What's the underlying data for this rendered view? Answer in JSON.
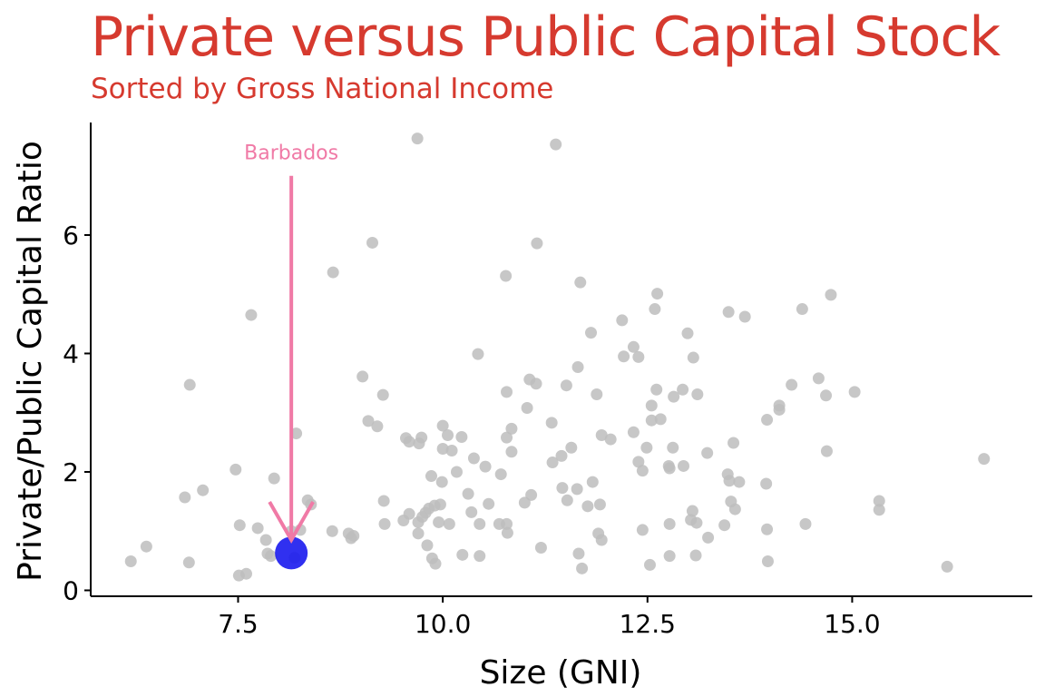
{
  "chart_data": {
    "type": "scatter",
    "title": "Private versus Public Capital Stock",
    "subtitle": "Sorted by Gross National Income",
    "xlabel": "Size (GNI)",
    "ylabel": "Private/Public Capital Ratio",
    "xlim": [
      5.7,
      17.2
    ],
    "ylim": [
      -0.1,
      7.9
    ],
    "x_ticks": [
      7.5,
      10.0,
      12.5,
      15.0
    ],
    "x_tick_labels": [
      "7.5",
      "10.0",
      "12.5",
      "15.0"
    ],
    "y_ticks": [
      0,
      2,
      4,
      6
    ],
    "y_tick_labels": [
      "0",
      "2",
      "4",
      "6"
    ],
    "grid": false,
    "point_color": "#bdbdbd",
    "highlight_color": "#1a1aee",
    "annotation_color": "#f07aa6",
    "points": [
      [
        9.69,
        7.63
      ],
      [
        11.38,
        7.53
      ],
      [
        9.14,
        5.87
      ],
      [
        11.15,
        5.86
      ],
      [
        8.66,
        5.37
      ],
      [
        10.77,
        5.31
      ],
      [
        11.68,
        5.2
      ],
      [
        12.62,
        5.01
      ],
      [
        14.74,
        4.99
      ],
      [
        13.49,
        4.7
      ],
      [
        14.39,
        4.75
      ],
      [
        7.66,
        4.65
      ],
      [
        12.59,
        4.75
      ],
      [
        13.69,
        4.62
      ],
      [
        12.19,
        4.56
      ],
      [
        11.81,
        4.35
      ],
      [
        12.99,
        4.34
      ],
      [
        12.33,
        4.11
      ],
      [
        12.39,
        3.94
      ],
      [
        12.21,
        3.95
      ],
      [
        13.06,
        3.93
      ],
      [
        10.43,
        3.99
      ],
      [
        9.02,
        3.61
      ],
      [
        11.65,
        3.77
      ],
      [
        14.59,
        3.58
      ],
      [
        11.06,
        3.56
      ],
      [
        11.14,
        3.49
      ],
      [
        11.51,
        3.46
      ],
      [
        12.61,
        3.39
      ],
      [
        6.91,
        3.47
      ],
      [
        14.26,
        3.47
      ],
      [
        15.03,
        3.35
      ],
      [
        10.78,
        3.35
      ],
      [
        9.27,
        3.3
      ],
      [
        11.88,
        3.31
      ],
      [
        12.93,
        3.39
      ],
      [
        13.11,
        3.31
      ],
      [
        12.82,
        3.27
      ],
      [
        14.68,
        3.29
      ],
      [
        11.03,
        3.08
      ],
      [
        12.55,
        3.12
      ],
      [
        14.11,
        3.12
      ],
      [
        14.11,
        3.05
      ],
      [
        12.66,
        2.89
      ],
      [
        12.55,
        2.87
      ],
      [
        9.09,
        2.86
      ],
      [
        13.96,
        2.88
      ],
      [
        11.33,
        2.83
      ],
      [
        9.2,
        2.77
      ],
      [
        10.0,
        2.78
      ],
      [
        10.84,
        2.73
      ],
      [
        12.33,
        2.67
      ],
      [
        8.21,
        2.65
      ],
      [
        11.94,
        2.62
      ],
      [
        10.06,
        2.62
      ],
      [
        10.23,
        2.59
      ],
      [
        10.78,
        2.58
      ],
      [
        12.05,
        2.55
      ],
      [
        9.55,
        2.57
      ],
      [
        9.74,
        2.58
      ],
      [
        9.59,
        2.51
      ],
      [
        9.71,
        2.48
      ],
      [
        10.0,
        2.39
      ],
      [
        12.49,
        2.41
      ],
      [
        12.81,
        2.41
      ],
      [
        13.55,
        2.49
      ],
      [
        11.57,
        2.41
      ],
      [
        10.11,
        2.36
      ],
      [
        10.84,
        2.34
      ],
      [
        14.69,
        2.35
      ],
      [
        13.23,
        2.32
      ],
      [
        11.45,
        2.27
      ],
      [
        10.38,
        2.23
      ],
      [
        12.39,
        2.17
      ],
      [
        11.34,
        2.16
      ],
      [
        12.76,
        2.1
      ],
      [
        12.94,
        2.1
      ],
      [
        10.52,
        2.09
      ],
      [
        16.61,
        2.22
      ],
      [
        12.77,
        2.06
      ],
      [
        12.44,
        2.02
      ],
      [
        7.47,
        2.04
      ],
      [
        10.17,
        2.0
      ],
      [
        13.48,
        1.96
      ],
      [
        10.71,
        1.96
      ],
      [
        9.86,
        1.93
      ],
      [
        13.5,
        1.85
      ],
      [
        7.94,
        1.89
      ],
      [
        11.83,
        1.83
      ],
      [
        9.99,
        1.83
      ],
      [
        13.62,
        1.83
      ],
      [
        13.95,
        1.8
      ],
      [
        11.46,
        1.73
      ],
      [
        11.64,
        1.71
      ],
      [
        7.07,
        1.69
      ],
      [
        10.31,
        1.63
      ],
      [
        11.08,
        1.61
      ],
      [
        11.52,
        1.52
      ],
      [
        6.85,
        1.57
      ],
      [
        8.35,
        1.52
      ],
      [
        9.28,
        1.51
      ],
      [
        11.92,
        1.45
      ],
      [
        8.39,
        1.45
      ],
      [
        10.56,
        1.46
      ],
      [
        9.9,
        1.43
      ],
      [
        9.83,
        1.38
      ],
      [
        9.97,
        1.45
      ],
      [
        13.57,
        1.37
      ],
      [
        13.52,
        1.5
      ],
      [
        11.77,
        1.42
      ],
      [
        11.0,
        1.48
      ],
      [
        15.33,
        1.51
      ],
      [
        15.33,
        1.36
      ],
      [
        9.59,
        1.29
      ],
      [
        9.79,
        1.31
      ],
      [
        9.75,
        1.24
      ],
      [
        10.35,
        1.32
      ],
      [
        13.05,
        1.34
      ],
      [
        13.03,
        1.19
      ],
      [
        13.1,
        1.14
      ],
      [
        9.95,
        1.15
      ],
      [
        9.7,
        1.15
      ],
      [
        9.52,
        1.18
      ],
      [
        9.29,
        1.12
      ],
      [
        10.08,
        1.12
      ],
      [
        10.45,
        1.12
      ],
      [
        10.69,
        1.12
      ],
      [
        10.78,
        1.12
      ],
      [
        12.77,
        1.12
      ],
      [
        13.44,
        1.1
      ],
      [
        14.43,
        1.12
      ],
      [
        7.52,
        1.1
      ],
      [
        7.74,
        1.05
      ],
      [
        8.15,
        1.0
      ],
      [
        8.26,
        1.02
      ],
      [
        8.65,
        1.0
      ],
      [
        8.85,
        0.96
      ],
      [
        8.91,
        0.92
      ],
      [
        9.7,
        0.96
      ],
      [
        10.79,
        0.97
      ],
      [
        11.9,
        0.96
      ],
      [
        12.44,
        1.02
      ],
      [
        13.96,
        1.03
      ],
      [
        11.94,
        0.85
      ],
      [
        9.81,
        0.76
      ],
      [
        7.84,
        0.85
      ],
      [
        8.88,
        0.88
      ],
      [
        11.2,
        0.72
      ],
      [
        13.24,
        0.89
      ],
      [
        6.38,
        0.74
      ],
      [
        7.86,
        0.62
      ],
      [
        7.9,
        0.58
      ],
      [
        10.24,
        0.6
      ],
      [
        10.45,
        0.58
      ],
      [
        11.66,
        0.62
      ],
      [
        12.77,
        0.58
      ],
      [
        13.09,
        0.59
      ],
      [
        9.87,
        0.54
      ],
      [
        9.91,
        0.45
      ],
      [
        13.97,
        0.49
      ],
      [
        6.19,
        0.49
      ],
      [
        6.9,
        0.47
      ],
      [
        8.19,
        0.55
      ],
      [
        12.53,
        0.43
      ],
      [
        11.7,
        0.37
      ],
      [
        16.16,
        0.4
      ],
      [
        7.51,
        0.25
      ],
      [
        7.6,
        0.28
      ]
    ],
    "highlight": {
      "x": 8.15,
      "y": 0.63
    },
    "annotation": {
      "text": "Barbados",
      "x": 8.15,
      "y": 7.4,
      "arrow_from_y": 7.0,
      "arrow_to_y": 0.85
    }
  }
}
